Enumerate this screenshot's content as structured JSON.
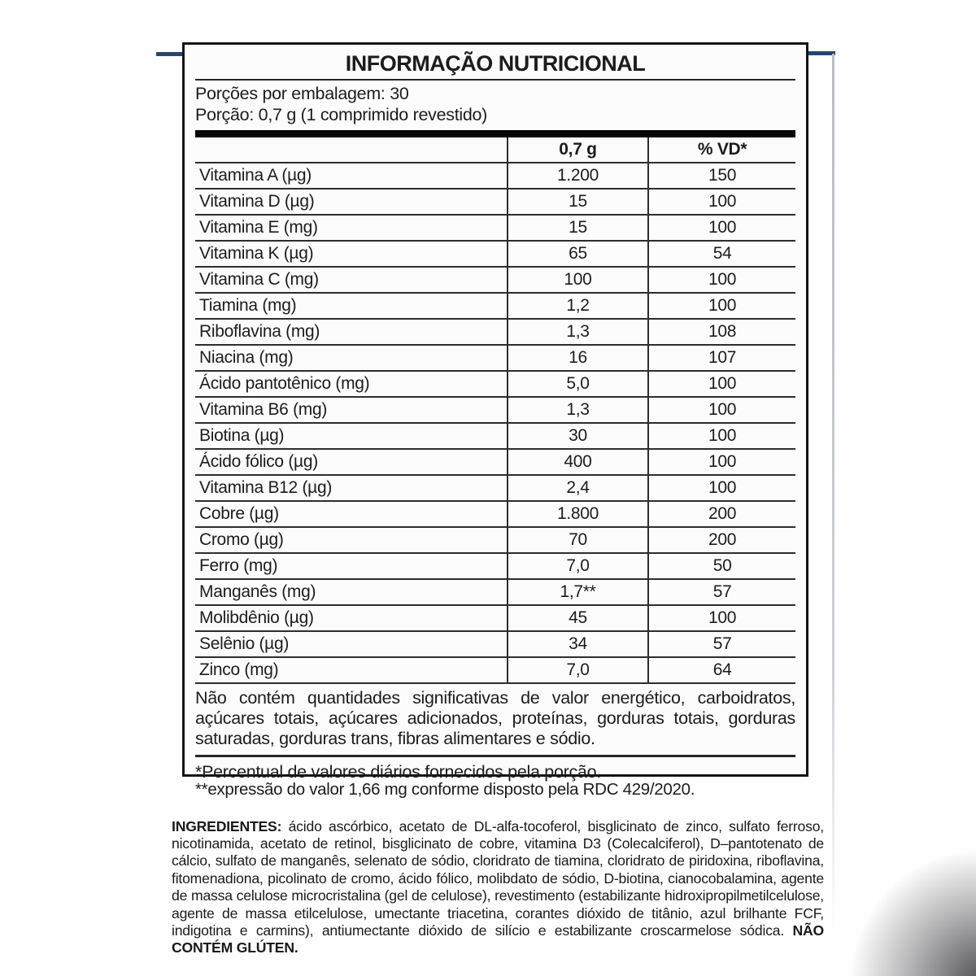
{
  "accents": {
    "blue_color": "#25476a"
  },
  "label": {
    "title": "INFORMAÇÃO NUTRICIONAL",
    "servings_line": "Porções por embalagem: 30",
    "portion_line": "Porção: 0,7 g (1 comprimido revestido)",
    "columns": {
      "amount": "0,7 g",
      "dv": "% VD*"
    },
    "rows": [
      {
        "name": "Vitamina A (µg)",
        "amount": "1.200",
        "dv": "150"
      },
      {
        "name": "Vitamina D (µg)",
        "amount": "15",
        "dv": "100"
      },
      {
        "name": "Vitamina E (mg)",
        "amount": "15",
        "dv": "100"
      },
      {
        "name": "Vitamina K (µg)",
        "amount": "65",
        "dv": "54"
      },
      {
        "name": "Vitamina C (mg)",
        "amount": "100",
        "dv": "100"
      },
      {
        "name": "Tiamina (mg)",
        "amount": "1,2",
        "dv": "100"
      },
      {
        "name": "Riboflavina (mg)",
        "amount": "1,3",
        "dv": "108"
      },
      {
        "name": "Niacina (mg)",
        "amount": "16",
        "dv": "107"
      },
      {
        "name": "Ácido pantotênico (mg)",
        "amount": "5,0",
        "dv": "100"
      },
      {
        "name": "Vitamina B6 (mg)",
        "amount": "1,3",
        "dv": "100"
      },
      {
        "name": "Biotina (µg)",
        "amount": "30",
        "dv": "100"
      },
      {
        "name": "Ácido fólico (µg)",
        "amount": "400",
        "dv": "100"
      },
      {
        "name": "Vitamina B12 (µg)",
        "amount": "2,4",
        "dv": "100"
      },
      {
        "name": "Cobre (µg)",
        "amount": "1.800",
        "dv": "200"
      },
      {
        "name": "Cromo (µg)",
        "amount": "70",
        "dv": "200"
      },
      {
        "name": "Ferro (mg)",
        "amount": "7,0",
        "dv": "50"
      },
      {
        "name": "Manganês (mg)",
        "amount": "1,7**",
        "dv": "57"
      },
      {
        "name": "Molibdênio (µg)",
        "amount": "45",
        "dv": "100"
      },
      {
        "name": "Selênio (µg)",
        "amount": "34",
        "dv": "57"
      },
      {
        "name": "Zinco (mg)",
        "amount": "7,0",
        "dv": "64"
      }
    ],
    "no_significant": "Não contém quantidades significativas de valor energético, carboidratos, açúcares totais, açúcares adicionados, proteínas, gorduras totais, gorduras saturadas, gorduras trans, fibras alimentares e sódio.",
    "dv_note": "*Percentual de valores diários fornecidos pela porção."
  },
  "footnote": "**expressão do valor 1,66 mg conforme disposto pela RDC 429/2020.",
  "ingredients": {
    "label": "INGREDIENTES:",
    "text": " ácido ascórbico, acetato de DL-alfa-tocoferol, bisglicinato de zinco, sulfato ferroso, nicotinamida, acetato de retinol, bisglicinato de cobre, vitamina D3 (Colecalciferol), D–pantotenato de cálcio, sulfato de manganês, selenato de sódio, cloridrato de tiamina, cloridrato de piridoxina, riboflavina, fitomenadiona, picolinato de cromo, ácido fólico, molibdato de sódio, D-biotina, cianocobalamina, agente de massa celulose microcristalina (gel de celulose), revestimento (estabilizante hidroxipropilmetilcelulose, agente de massa etilcelulose, umectante triacetina, corantes dióxido de titânio, azul brilhante FCF, indigotina e carmins), antiumectante dióxido de silício e estabilizante croscarmelose sódica. ",
    "gluten": "NÃO CONTÉM GLÚTEN."
  }
}
